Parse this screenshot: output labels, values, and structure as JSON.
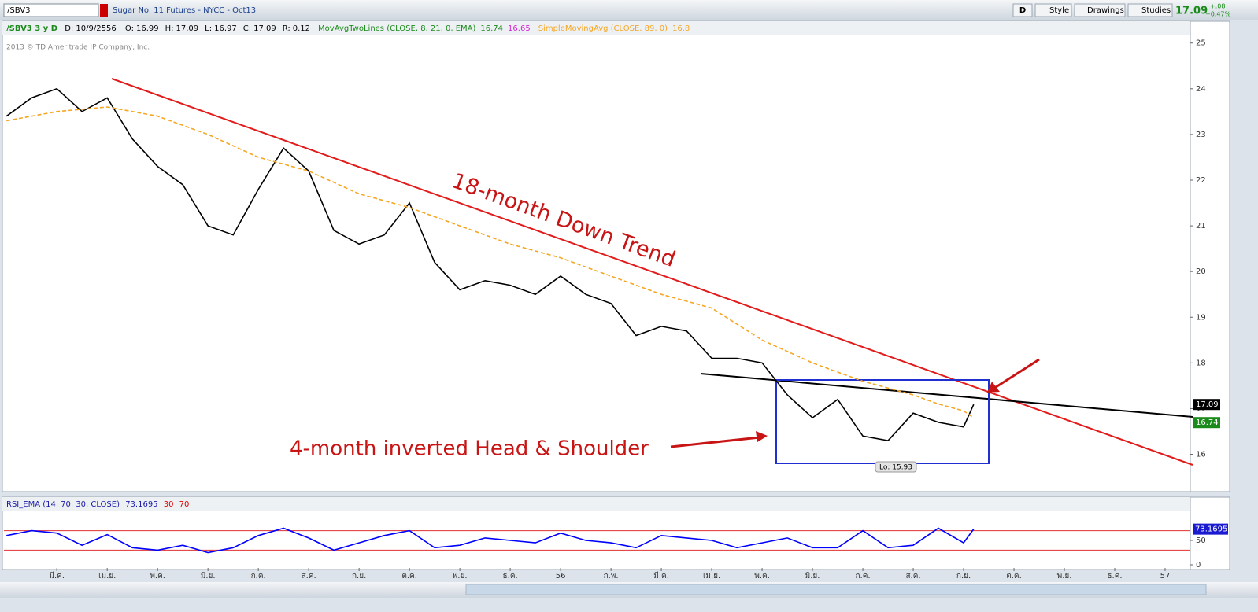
{
  "toolbar": {
    "symbol": "/SBV3",
    "description": "Sugar No. 11 Futures - NYCC - Oct13",
    "buttons": [
      "D",
      "Style",
      "Drawings",
      "Studies"
    ],
    "last": "17.09",
    "change": "+.08",
    "change_pct": "+0.47%"
  },
  "info": {
    "study": "/SBV3 3 y D",
    "date": "D: 10/9/2556",
    "ohlc": [
      [
        "O:",
        "16.99"
      ],
      [
        "H:",
        "17.09"
      ],
      [
        "L:",
        "16.97"
      ],
      [
        "C:",
        "17.09"
      ],
      [
        "R:",
        "0.12"
      ]
    ],
    "ema_study": "MovAvgTwoLines (CLOSE, 8, 21, 0, EMA)",
    "ema_fast": "16.74",
    "ema_slow": "16.65",
    "sma_study": "SimpleMovingAvg (CLOSE, 89, 0)",
    "sma": "16.8"
  },
  "copyright": "2013 © TD Ameritrade IP Company, Inc.",
  "annotations": {
    "trend": "18-month Down Trend",
    "pattern": "4-month inverted Head & Shoulder",
    "low": "Lo: 15.93"
  },
  "chart_data": [
    {
      "type": "line",
      "x": [
        -1,
        -0.5,
        0,
        0.5,
        1,
        1.5,
        2,
        2.5,
        3,
        3.5,
        4,
        4.5,
        5,
        5.5,
        6,
        6.5,
        7,
        7.5,
        8,
        8.5,
        9,
        9.5,
        10,
        10.5,
        11,
        11.5,
        12,
        12.5,
        13,
        13.5,
        14,
        14.5,
        15,
        15.5,
        16,
        16.5,
        17,
        17.5,
        18,
        18.2
      ],
      "series": [
        {
          "name": "Close",
          "color": "#000000",
          "values": [
            23.4,
            23.8,
            24.0,
            23.5,
            23.8,
            22.9,
            22.3,
            21.9,
            21.0,
            20.8,
            21.8,
            22.7,
            22.2,
            20.9,
            20.6,
            20.8,
            21.5,
            20.2,
            19.6,
            19.8,
            19.7,
            19.5,
            19.9,
            19.5,
            19.3,
            18.6,
            18.8,
            18.7,
            18.1,
            18.1,
            18.0,
            17.3,
            16.8,
            17.2,
            16.4,
            16.3,
            16.9,
            16.7,
            16.6,
            17.09
          ]
        },
        {
          "name": "SMA",
          "color": "#f5a623",
          "dashed": true,
          "values": [
            23.3,
            23.4,
            23.5,
            23.55,
            23.6,
            23.5,
            23.4,
            23.2,
            23.0,
            22.75,
            22.5,
            22.35,
            22.2,
            21.95,
            21.7,
            21.55,
            21.4,
            21.2,
            21.0,
            20.8,
            20.6,
            20.45,
            20.3,
            20.1,
            19.9,
            19.7,
            19.5,
            19.35,
            19.2,
            18.85,
            18.5,
            18.25,
            18.0,
            17.8,
            17.6,
            17.45,
            17.3,
            17.1,
            16.95,
            16.8
          ]
        }
      ],
      "xlim": [
        -1.05,
        22.5
      ],
      "ylim": [
        15.2,
        25.15
      ],
      "yticks": [
        16,
        17,
        18,
        19,
        20,
        21,
        22,
        23,
        24,
        25
      ],
      "last_label": "17.09",
      "ema_label": "16.74"
    },
    {
      "type": "line",
      "title": "RSI_EMA (14, 70, 30, CLOSE)",
      "value_label": "73.1695",
      "levels": [
        30,
        70
      ],
      "x": [
        -1,
        -0.5,
        0,
        0.5,
        1,
        1.5,
        2,
        2.5,
        3,
        3.5,
        4,
        4.5,
        5,
        5.5,
        6,
        6.5,
        7,
        7.5,
        8,
        8.5,
        9,
        9.5,
        10,
        10.5,
        11,
        11.5,
        12,
        12.5,
        13,
        13.5,
        14,
        14.5,
        15,
        15.5,
        16,
        16.5,
        17,
        17.5,
        18,
        18.2
      ],
      "series": [
        {
          "name": "RSI",
          "color": "#0000ff",
          "values": [
            60,
            70,
            65,
            40,
            62,
            35,
            30,
            40,
            25,
            35,
            60,
            75,
            55,
            30,
            45,
            60,
            70,
            35,
            40,
            55,
            50,
            45,
            65,
            50,
            45,
            35,
            60,
            55,
            50,
            35,
            45,
            55,
            35,
            35,
            70,
            35,
            40,
            75,
            45,
            73.1695
          ]
        }
      ],
      "xlim": [
        -1.05,
        22.5
      ],
      "ylim": [
        0,
        100
      ],
      "yticks": [
        0,
        50
      ],
      "xticks": [
        {
          "value": 0,
          "label": "มี.ค."
        },
        {
          "value": 1,
          "label": "เม.ย."
        },
        {
          "value": 2,
          "label": "พ.ค."
        },
        {
          "value": 3,
          "label": "มิ.ย."
        },
        {
          "value": 4,
          "label": "ก.ค."
        },
        {
          "value": 5,
          "label": "ส.ค."
        },
        {
          "value": 6,
          "label": "ก.ย."
        },
        {
          "value": 7,
          "label": "ต.ค."
        },
        {
          "value": 8,
          "label": "พ.ย."
        },
        {
          "value": 9,
          "label": "ธ.ค."
        },
        {
          "value": 10,
          "label": "56"
        },
        {
          "value": 11,
          "label": "ก.พ."
        },
        {
          "value": 12,
          "label": "มี.ค."
        },
        {
          "value": 13,
          "label": "เม.ย."
        },
        {
          "value": 14,
          "label": "พ.ค."
        },
        {
          "value": 15,
          "label": "มิ.ย."
        },
        {
          "value": 16,
          "label": "ก.ค."
        },
        {
          "value": 17,
          "label": "ส.ค."
        },
        {
          "value": 18,
          "label": "ก.ย."
        },
        {
          "value": 19,
          "label": "ต.ค."
        },
        {
          "value": 20,
          "label": "พ.ย."
        },
        {
          "value": 21,
          "label": "ธ.ค."
        },
        {
          "value": 22,
          "label": "57"
        }
      ]
    }
  ]
}
